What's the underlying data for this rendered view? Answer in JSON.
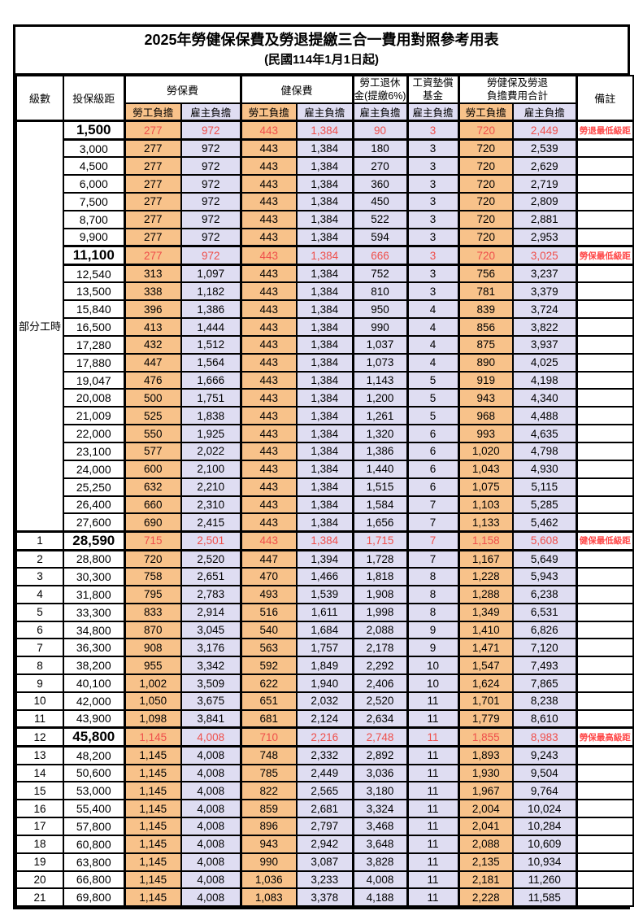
{
  "title": "2025年勞健保保費及勞退提繳三合一費用對照參考用表",
  "subtitle": "(民國114年1月1日起)",
  "colors": {
    "employee_col_bg": "#f8c28a",
    "employer_col_bg": "#dfddf2",
    "highlight_value_red": "#ef4f4b",
    "remark_red": "#ff4747",
    "grid_black": "#000000"
  },
  "header": {
    "level": "級數",
    "bracket": "投保級距",
    "labor_insurance": "勞保費",
    "health_insurance": "健保費",
    "pension_line1": "勞工退休",
    "pension_line2": "金(提繳6%)",
    "wage_fund_line1": "工資墊償",
    "wage_fund_line2": "基金",
    "total_line1": "勞健保及勞退",
    "total_line2": "負擔費用合計",
    "remark": "備註",
    "employee": "勞工負擔",
    "employer": "雇主負擔"
  },
  "part_time_label": "部分工時",
  "rows": [
    {
      "level": "",
      "bracket": "1,500",
      "values": [
        "277",
        "972",
        "443",
        "1,384",
        "90",
        "3",
        "720",
        "2,449"
      ],
      "remark": "勞退最低級距",
      "highlight": true
    },
    {
      "level": "",
      "bracket": "3,000",
      "values": [
        "277",
        "972",
        "443",
        "1,384",
        "180",
        "3",
        "720",
        "2,539"
      ],
      "remark": "",
      "highlight": false
    },
    {
      "level": "",
      "bracket": "4,500",
      "values": [
        "277",
        "972",
        "443",
        "1,384",
        "270",
        "3",
        "720",
        "2,629"
      ],
      "remark": "",
      "highlight": false
    },
    {
      "level": "",
      "bracket": "6,000",
      "values": [
        "277",
        "972",
        "443",
        "1,384",
        "360",
        "3",
        "720",
        "2,719"
      ],
      "remark": "",
      "highlight": false
    },
    {
      "level": "",
      "bracket": "7,500",
      "values": [
        "277",
        "972",
        "443",
        "1,384",
        "450",
        "3",
        "720",
        "2,809"
      ],
      "remark": "",
      "highlight": false
    },
    {
      "level": "",
      "bracket": "8,700",
      "values": [
        "277",
        "972",
        "443",
        "1,384",
        "522",
        "3",
        "720",
        "2,881"
      ],
      "remark": "",
      "highlight": false
    },
    {
      "level": "",
      "bracket": "9,900",
      "values": [
        "277",
        "972",
        "443",
        "1,384",
        "594",
        "3",
        "720",
        "2,953"
      ],
      "remark": "",
      "highlight": false
    },
    {
      "level": "",
      "bracket": "11,100",
      "values": [
        "277",
        "972",
        "443",
        "1,384",
        "666",
        "3",
        "720",
        "3,025"
      ],
      "remark": "勞保最低級距",
      "highlight": true
    },
    {
      "level": "",
      "bracket": "12,540",
      "values": [
        "313",
        "1,097",
        "443",
        "1,384",
        "752",
        "3",
        "756",
        "3,237"
      ],
      "remark": "",
      "highlight": false
    },
    {
      "level": "",
      "bracket": "13,500",
      "values": [
        "338",
        "1,182",
        "443",
        "1,384",
        "810",
        "3",
        "781",
        "3,379"
      ],
      "remark": "",
      "highlight": false
    },
    {
      "level": "",
      "bracket": "15,840",
      "values": [
        "396",
        "1,386",
        "443",
        "1,384",
        "950",
        "4",
        "839",
        "3,724"
      ],
      "remark": "",
      "highlight": false
    },
    {
      "level": "",
      "bracket": "16,500",
      "values": [
        "413",
        "1,444",
        "443",
        "1,384",
        "990",
        "4",
        "856",
        "3,822"
      ],
      "remark": "",
      "highlight": false
    },
    {
      "level": "",
      "bracket": "17,280",
      "values": [
        "432",
        "1,512",
        "443",
        "1,384",
        "1,037",
        "4",
        "875",
        "3,937"
      ],
      "remark": "",
      "highlight": false
    },
    {
      "level": "",
      "bracket": "17,880",
      "values": [
        "447",
        "1,564",
        "443",
        "1,384",
        "1,073",
        "4",
        "890",
        "4,025"
      ],
      "remark": "",
      "highlight": false
    },
    {
      "level": "",
      "bracket": "19,047",
      "values": [
        "476",
        "1,666",
        "443",
        "1,384",
        "1,143",
        "5",
        "919",
        "4,198"
      ],
      "remark": "",
      "highlight": false
    },
    {
      "level": "",
      "bracket": "20,008",
      "values": [
        "500",
        "1,751",
        "443",
        "1,384",
        "1,200",
        "5",
        "943",
        "4,340"
      ],
      "remark": "",
      "highlight": false
    },
    {
      "level": "",
      "bracket": "21,009",
      "values": [
        "525",
        "1,838",
        "443",
        "1,384",
        "1,261",
        "5",
        "968",
        "4,488"
      ],
      "remark": "",
      "highlight": false
    },
    {
      "level": "",
      "bracket": "22,000",
      "values": [
        "550",
        "1,925",
        "443",
        "1,384",
        "1,320",
        "6",
        "993",
        "4,635"
      ],
      "remark": "",
      "highlight": false
    },
    {
      "level": "",
      "bracket": "23,100",
      "values": [
        "577",
        "2,022",
        "443",
        "1,384",
        "1,386",
        "6",
        "1,020",
        "4,798"
      ],
      "remark": "",
      "highlight": false
    },
    {
      "level": "",
      "bracket": "24,000",
      "values": [
        "600",
        "2,100",
        "443",
        "1,384",
        "1,440",
        "6",
        "1,043",
        "4,930"
      ],
      "remark": "",
      "highlight": false
    },
    {
      "level": "",
      "bracket": "25,250",
      "values": [
        "632",
        "2,210",
        "443",
        "1,384",
        "1,515",
        "6",
        "1,075",
        "5,115"
      ],
      "remark": "",
      "highlight": false
    },
    {
      "level": "",
      "bracket": "26,400",
      "values": [
        "660",
        "2,310",
        "443",
        "1,384",
        "1,584",
        "7",
        "1,103",
        "5,285"
      ],
      "remark": "",
      "highlight": false
    },
    {
      "level": "",
      "bracket": "27,600",
      "values": [
        "690",
        "2,415",
        "443",
        "1,384",
        "1,656",
        "7",
        "1,133",
        "5,462"
      ],
      "remark": "",
      "highlight": false
    },
    {
      "level": "1",
      "bracket": "28,590",
      "values": [
        "715",
        "2,501",
        "443",
        "1,384",
        "1,715",
        "7",
        "1,158",
        "5,608"
      ],
      "remark": "健保最低級距",
      "highlight": true
    },
    {
      "level": "2",
      "bracket": "28,800",
      "values": [
        "720",
        "2,520",
        "447",
        "1,394",
        "1,728",
        "7",
        "1,167",
        "5,649"
      ],
      "remark": "",
      "highlight": false
    },
    {
      "level": "3",
      "bracket": "30,300",
      "values": [
        "758",
        "2,651",
        "470",
        "1,466",
        "1,818",
        "8",
        "1,228",
        "5,943"
      ],
      "remark": "",
      "highlight": false
    },
    {
      "level": "4",
      "bracket": "31,800",
      "values": [
        "795",
        "2,783",
        "493",
        "1,539",
        "1,908",
        "8",
        "1,288",
        "6,238"
      ],
      "remark": "",
      "highlight": false
    },
    {
      "level": "5",
      "bracket": "33,300",
      "values": [
        "833",
        "2,914",
        "516",
        "1,611",
        "1,998",
        "8",
        "1,349",
        "6,531"
      ],
      "remark": "",
      "highlight": false
    },
    {
      "level": "6",
      "bracket": "34,800",
      "values": [
        "870",
        "3,045",
        "540",
        "1,684",
        "2,088",
        "9",
        "1,410",
        "6,826"
      ],
      "remark": "",
      "highlight": false
    },
    {
      "level": "7",
      "bracket": "36,300",
      "values": [
        "908",
        "3,176",
        "563",
        "1,757",
        "2,178",
        "9",
        "1,471",
        "7,120"
      ],
      "remark": "",
      "highlight": false
    },
    {
      "level": "8",
      "bracket": "38,200",
      "values": [
        "955",
        "3,342",
        "592",
        "1,849",
        "2,292",
        "10",
        "1,547",
        "7,493"
      ],
      "remark": "",
      "highlight": false
    },
    {
      "level": "9",
      "bracket": "40,100",
      "values": [
        "1,002",
        "3,509",
        "622",
        "1,940",
        "2,406",
        "10",
        "1,624",
        "7,865"
      ],
      "remark": "",
      "highlight": false
    },
    {
      "level": "10",
      "bracket": "42,000",
      "values": [
        "1,050",
        "3,675",
        "651",
        "2,032",
        "2,520",
        "11",
        "1,701",
        "8,238"
      ],
      "remark": "",
      "highlight": false
    },
    {
      "level": "11",
      "bracket": "43,900",
      "values": [
        "1,098",
        "3,841",
        "681",
        "2,124",
        "2,634",
        "11",
        "1,779",
        "8,610"
      ],
      "remark": "",
      "highlight": false
    },
    {
      "level": "12",
      "bracket": "45,800",
      "values": [
        "1,145",
        "4,008",
        "710",
        "2,216",
        "2,748",
        "11",
        "1,855",
        "8,983"
      ],
      "remark": "勞保最高級距",
      "highlight": true
    },
    {
      "level": "13",
      "bracket": "48,200",
      "values": [
        "1,145",
        "4,008",
        "748",
        "2,332",
        "2,892",
        "11",
        "1,893",
        "9,243"
      ],
      "remark": "",
      "highlight": false
    },
    {
      "level": "14",
      "bracket": "50,600",
      "values": [
        "1,145",
        "4,008",
        "785",
        "2,449",
        "3,036",
        "11",
        "1,930",
        "9,504"
      ],
      "remark": "",
      "highlight": false
    },
    {
      "level": "15",
      "bracket": "53,000",
      "values": [
        "1,145",
        "4,008",
        "822",
        "2,565",
        "3,180",
        "11",
        "1,967",
        "9,764"
      ],
      "remark": "",
      "highlight": false
    },
    {
      "level": "16",
      "bracket": "55,400",
      "values": [
        "1,145",
        "4,008",
        "859",
        "2,681",
        "3,324",
        "11",
        "2,004",
        "10,024"
      ],
      "remark": "",
      "highlight": false
    },
    {
      "level": "17",
      "bracket": "57,800",
      "values": [
        "1,145",
        "4,008",
        "896",
        "2,797",
        "3,468",
        "11",
        "2,041",
        "10,284"
      ],
      "remark": "",
      "highlight": false
    },
    {
      "level": "18",
      "bracket": "60,800",
      "values": [
        "1,145",
        "4,008",
        "943",
        "2,942",
        "3,648",
        "11",
        "2,088",
        "10,609"
      ],
      "remark": "",
      "highlight": false
    },
    {
      "level": "19",
      "bracket": "63,800",
      "values": [
        "1,145",
        "4,008",
        "990",
        "3,087",
        "3,828",
        "11",
        "2,135",
        "10,934"
      ],
      "remark": "",
      "highlight": false
    },
    {
      "level": "20",
      "bracket": "66,800",
      "values": [
        "1,145",
        "4,008",
        "1,036",
        "3,233",
        "4,008",
        "11",
        "2,181",
        "11,260"
      ],
      "remark": "",
      "highlight": false
    },
    {
      "level": "21",
      "bracket": "69,800",
      "values": [
        "1,145",
        "4,008",
        "1,083",
        "3,378",
        "4,188",
        "11",
        "2,228",
        "11,585"
      ],
      "remark": "",
      "highlight": false
    }
  ]
}
